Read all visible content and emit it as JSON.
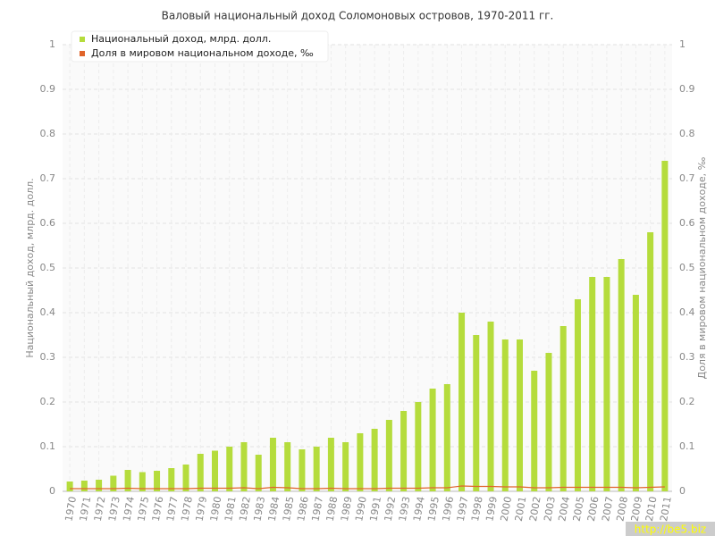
{
  "chart_data": {
    "type": "bar",
    "title": "Валовый национальный доход Соломоновых островов, 1970-2011 гг.",
    "y_label": "Национальный доход, млрд. долл.",
    "y2_label": "Доля в мировом национальном доходе, ‰",
    "watermark": "http://be5.biz",
    "categories": [
      "1970",
      "1971",
      "1972",
      "1973",
      "1974",
      "1975",
      "1976",
      "1977",
      "1978",
      "1979",
      "1980",
      "1981",
      "1982",
      "1983",
      "1984",
      "1985",
      "1986",
      "1987",
      "1988",
      "1989",
      "1990",
      "1991",
      "1992",
      "1993",
      "1994",
      "1995",
      "1996",
      "1997",
      "1998",
      "1999",
      "2000",
      "2001",
      "2002",
      "2003",
      "2004",
      "2005",
      "2006",
      "2007",
      "2008",
      "2009",
      "2010",
      "2011"
    ],
    "series": [
      {
        "name": "Национальный доход, млрд. долл.",
        "color": "#b5dc3c",
        "type": "bar",
        "values": [
          0.022,
          0.024,
          0.026,
          0.035,
          0.048,
          0.043,
          0.046,
          0.052,
          0.06,
          0.084,
          0.091,
          0.1,
          0.11,
          0.082,
          0.12,
          0.11,
          0.094,
          0.1,
          0.12,
          0.11,
          0.13,
          0.14,
          0.16,
          0.18,
          0.2,
          0.23,
          0.24,
          0.4,
          0.35,
          0.38,
          0.34,
          0.34,
          0.27,
          0.31,
          0.37,
          0.43,
          0.48,
          0.48,
          0.52,
          0.44,
          0.58,
          0.74
        ]
      },
      {
        "name": "Доля в мировом национальном доходе, ‰",
        "color": "#e0642a",
        "type": "line",
        "axis": "y2",
        "values": [
          0.006,
          0.006,
          0.006,
          0.006,
          0.007,
          0.006,
          0.006,
          0.006,
          0.006,
          0.007,
          0.007,
          0.007,
          0.008,
          0.006,
          0.009,
          0.008,
          0.006,
          0.006,
          0.007,
          0.006,
          0.006,
          0.006,
          0.007,
          0.007,
          0.007,
          0.008,
          0.008,
          0.012,
          0.011,
          0.011,
          0.01,
          0.01,
          0.008,
          0.008,
          0.009,
          0.009,
          0.009,
          0.009,
          0.009,
          0.008,
          0.009,
          0.01
        ]
      }
    ],
    "ylim": [
      0,
      1
    ],
    "yticks": [
      0,
      0.1,
      0.2,
      0.3,
      0.4,
      0.5,
      0.6,
      0.7,
      0.8,
      0.9,
      1
    ],
    "y2lim": [
      0,
      1
    ],
    "y2ticks": [
      0,
      0.1,
      0.2,
      0.3,
      0.4,
      0.5,
      0.6,
      0.7,
      0.8,
      0.9,
      1
    ],
    "grid": true
  }
}
